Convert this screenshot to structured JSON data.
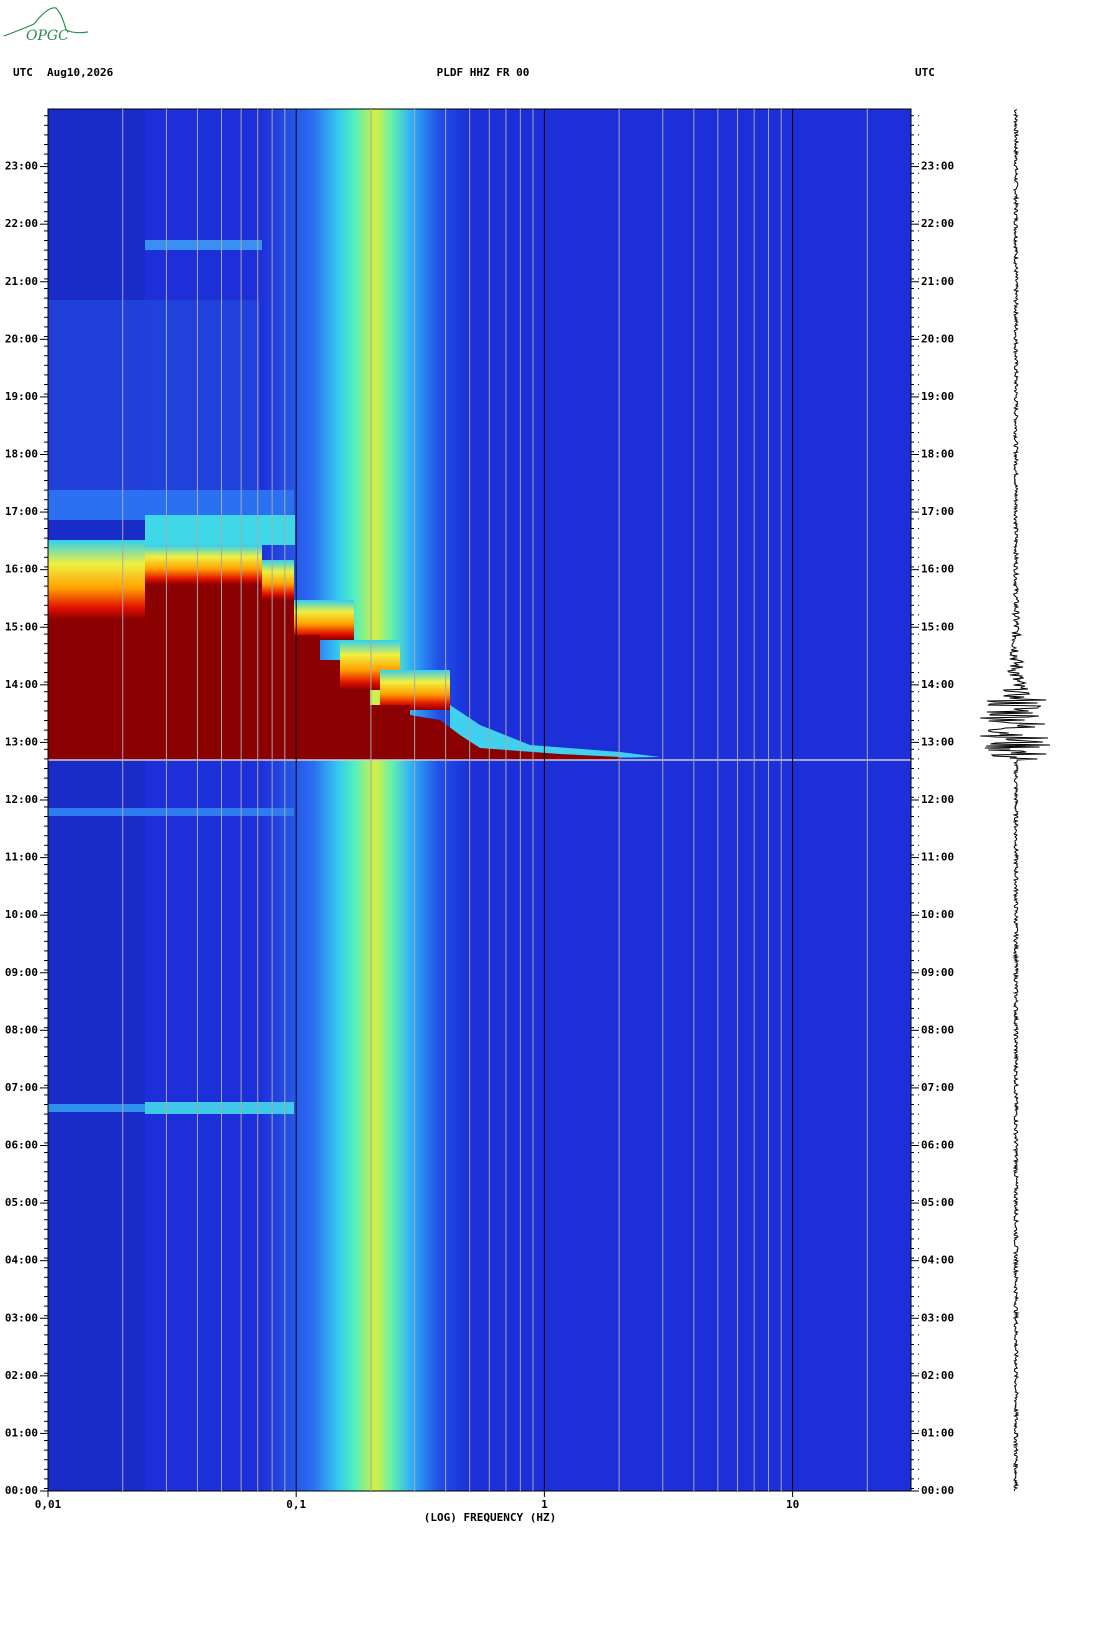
{
  "logo": "OPGC",
  "chart_data": {
    "type": "spectrogram",
    "title": "PLDF HHZ FR 00",
    "time_zone": "UTC",
    "date": "Aug10,2026",
    "x_label": "(LOG) FREQUENCY (HZ)",
    "xscale": "log",
    "xlim": [
      0.01,
      30
    ],
    "xticks": [
      {
        "value": 0.01,
        "label": "0,01"
      },
      {
        "value": 0.1,
        "label": "0,1"
      },
      1,
      10
    ],
    "xgrid": [
      0.02,
      0.03,
      0.04,
      0.05,
      0.06,
      0.07,
      0.08,
      0.09,
      0.1,
      0.2,
      0.3,
      0.4,
      0.5,
      0.6,
      0.7,
      0.8,
      0.9,
      1,
      2,
      3,
      4,
      5,
      6,
      7,
      8,
      9,
      10,
      20
    ],
    "ylim": [
      0,
      24
    ],
    "yticks": [
      {
        "value": 0,
        "label": "00:00"
      },
      {
        "value": 1,
        "label": "01:00"
      },
      {
        "value": 2,
        "label": "02:00"
      },
      {
        "value": 3,
        "label": "03:00"
      },
      {
        "value": 4,
        "label": "04:00"
      },
      {
        "value": 5,
        "label": "05:00"
      },
      {
        "value": 6,
        "label": "06:00"
      },
      {
        "value": 7,
        "label": "07:00"
      },
      {
        "value": 8,
        "label": "08:00"
      },
      {
        "value": 9,
        "label": "09:00"
      },
      {
        "value": 10,
        "label": "10:00"
      },
      {
        "value": 11,
        "label": "11:00"
      },
      {
        "value": 12,
        "label": "12:00"
      },
      {
        "value": 13,
        "label": "13:00"
      },
      {
        "value": 14,
        "label": "14:00"
      },
      {
        "value": 15,
        "label": "15:00"
      },
      {
        "value": 16,
        "label": "16:00"
      },
      {
        "value": 17,
        "label": "17:00"
      },
      {
        "value": 18,
        "label": "18:00"
      },
      {
        "value": 19,
        "label": "19:00"
      },
      {
        "value": 20,
        "label": "20:00"
      },
      {
        "value": 21,
        "label": "21:00"
      },
      {
        "value": 22,
        "label": "22:00"
      },
      {
        "value": 23,
        "label": "23:00"
      }
    ],
    "grid": true
  }
}
